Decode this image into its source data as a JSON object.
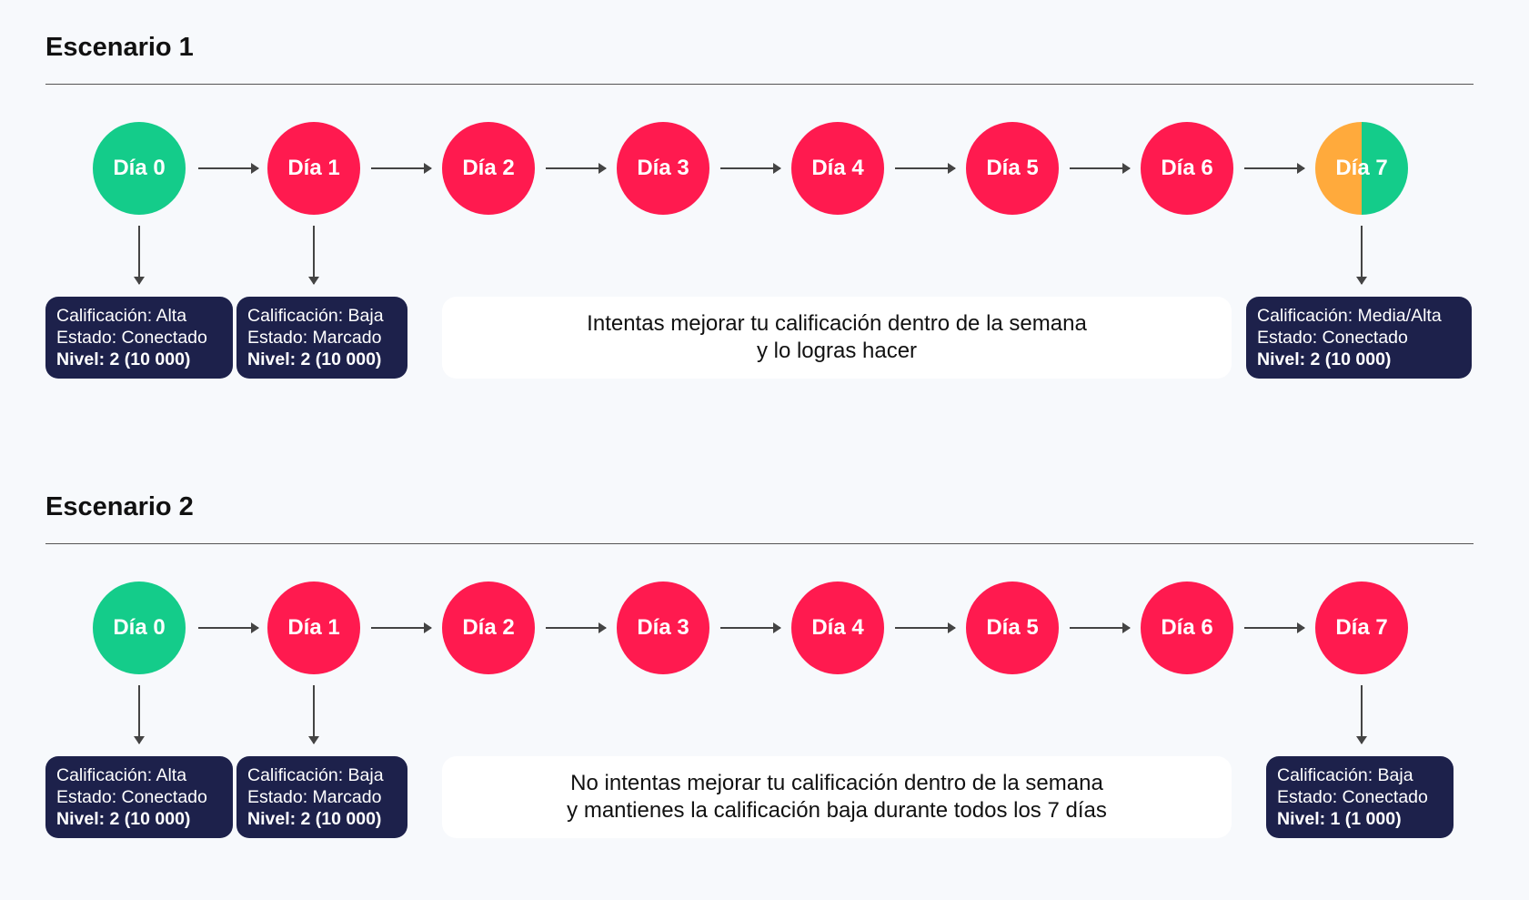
{
  "scenarios": [
    {
      "title": "Escenario 1",
      "days": [
        "Día 0",
        "Día 1",
        "Día 2",
        "Día 3",
        "Día 4",
        "Día 5",
        "Día 6",
        "Día 7"
      ],
      "day_colors": [
        "green",
        "red",
        "red",
        "red",
        "red",
        "red",
        "red",
        "orange/green"
      ],
      "boxes": {
        "day0": {
          "calificacion": "Calificación: Alta",
          "estado": "Estado: Conectado",
          "nivel": "Nivel: 2 (10 000)"
        },
        "day1": {
          "calificacion": "Calificación: Baja",
          "estado": "Estado: Marcado",
          "nivel": "Nivel: 2 (10 000)"
        },
        "day7": {
          "calificacion": "Calificación: Media/Alta",
          "estado": "Estado: Conectado",
          "nivel": "Nivel: 2 (10 000)"
        }
      },
      "note": {
        "line1": "Intentas mejorar tu calificación dentro de la semana",
        "line2": "y lo logras hacer"
      }
    },
    {
      "title": "Escenario 2",
      "days": [
        "Día 0",
        "Día 1",
        "Día 2",
        "Día 3",
        "Día 4",
        "Día 5",
        "Día 6",
        "Día 7"
      ],
      "day_colors": [
        "green",
        "red",
        "red",
        "red",
        "red",
        "red",
        "red",
        "red"
      ],
      "boxes": {
        "day0": {
          "calificacion": "Calificación: Alta",
          "estado": "Estado: Conectado",
          "nivel": "Nivel: 2 (10 000)"
        },
        "day1": {
          "calificacion": "Calificación: Baja",
          "estado": "Estado: Marcado",
          "nivel": "Nivel: 2 (10 000)"
        },
        "day7": {
          "calificacion": "Calificación: Baja",
          "estado": "Estado: Conectado",
          "nivel": "Nivel: 1 (1 000)"
        }
      },
      "note": {
        "line1": "No intentas mejorar tu calificación dentro de la semana",
        "line2": "y mantienes la calificación baja durante todos los 7 días"
      }
    }
  ],
  "colors": {
    "green": "#14cc8a",
    "red": "#ff1a4f",
    "orange": "#ffaa3c",
    "navy": "#1d214b"
  }
}
